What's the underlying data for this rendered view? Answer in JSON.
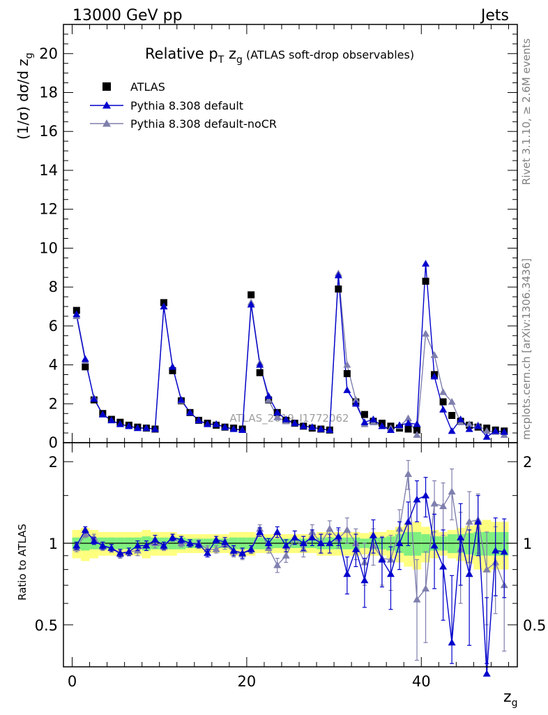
{
  "header": {
    "left": "13000 GeV pp",
    "right": "Jets"
  },
  "title": {
    "main": "Relative p",
    "sub1": "T",
    "mid": " z",
    "sub2": "g",
    "small": " (ATLAS soft-drop observables)"
  },
  "side_texts": {
    "rivet": "Rivet 3.1.10, ≥ 2.6M events",
    "mcplots": "mcplots.cern.ch [arXiv:1306.3436]",
    "watermark": "ATLAS_2019_I1772062"
  },
  "ylabel_top": "(1/σ) dσ/d z",
  "ylabel_top_sub": "g",
  "ylabel_bottom": "Ratio to ATLAS",
  "xlabel": "z",
  "xlabel_sub": "g",
  "colors": {
    "data": "#000000",
    "pythia_default": "#0000cc",
    "pythia_nocr": "#7f7fae",
    "band_inner": "#7fef7f",
    "band_outer": "#ffff7f"
  },
  "chart_data": [
    {
      "type": "scatter",
      "panel": "main",
      "xlim": [
        -1,
        51
      ],
      "ylim": [
        0,
        21.5
      ],
      "xticks": [
        0,
        20,
        40
      ],
      "yticks": [
        0,
        2,
        4,
        6,
        8,
        10,
        12,
        14,
        16,
        18,
        20
      ],
      "ytick_labels": [
        "0",
        "2",
        "4",
        "6",
        "8",
        "10",
        "12",
        "14",
        "16",
        "18",
        "20"
      ],
      "legend_position": "top-left",
      "x": [
        0.5,
        1.5,
        2.5,
        3.5,
        4.5,
        5.5,
        6.5,
        7.5,
        8.5,
        9.5,
        10.5,
        11.5,
        12.5,
        13.5,
        14.5,
        15.5,
        16.5,
        17.5,
        18.5,
        19.5,
        20.5,
        21.5,
        22.5,
        23.5,
        24.5,
        25.5,
        26.5,
        27.5,
        28.5,
        29.5,
        30.5,
        31.5,
        32.5,
        33.5,
        34.5,
        35.5,
        36.5,
        37.5,
        38.5,
        39.5,
        40.5,
        41.5,
        42.5,
        43.5,
        44.5,
        45.5,
        46.5,
        47.5,
        48.5,
        49.5
      ],
      "series": [
        {
          "name": "ATLAS",
          "marker": "square",
          "values": [
            6.8,
            3.9,
            2.2,
            1.5,
            1.2,
            1.05,
            0.9,
            0.8,
            0.75,
            0.7,
            7.2,
            3.7,
            2.15,
            1.55,
            1.15,
            1.0,
            0.9,
            0.8,
            0.75,
            0.7,
            7.6,
            3.6,
            2.2,
            1.55,
            1.15,
            1.0,
            0.85,
            0.75,
            0.7,
            0.65,
            7.9,
            3.55,
            2.1,
            1.45,
            1.1,
            1.0,
            0.85,
            0.75,
            0.7,
            0.65,
            8.3,
            3.5,
            2.1,
            1.4,
            1.1,
            0.9,
            0.8,
            0.75,
            0.65,
            0.6
          ]
        },
        {
          "name": "Pythia 8.308 default",
          "marker": "triangle",
          "values": [
            6.6,
            4.3,
            2.25,
            1.45,
            1.15,
            0.95,
            0.85,
            0.75,
            0.75,
            0.7,
            7.0,
            3.9,
            2.2,
            1.55,
            1.15,
            0.95,
            0.95,
            0.8,
            0.7,
            0.65,
            7.1,
            4.0,
            2.4,
            1.55,
            1.2,
            1.0,
            0.85,
            0.8,
            0.7,
            0.65,
            8.6,
            2.7,
            2.0,
            1.05,
            1.2,
            0.85,
            0.65,
            0.9,
            1.0,
            0.95,
            9.2,
            3.4,
            1.7,
            0.6,
            1.2,
            0.7,
            0.85,
            0.3,
            0.6,
            0.55
          ]
        },
        {
          "name": "Pythia 8.308 default-noCR",
          "marker": "triangle",
          "values": [
            6.5,
            4.2,
            2.3,
            1.45,
            1.15,
            0.95,
            0.85,
            0.75,
            0.75,
            0.7,
            7.0,
            3.9,
            2.15,
            1.55,
            1.15,
            0.95,
            0.95,
            0.8,
            0.7,
            0.65,
            7.2,
            4.1,
            2.2,
            1.3,
            1.1,
            1.0,
            0.85,
            0.8,
            0.7,
            0.65,
            8.7,
            4.0,
            2.2,
            0.95,
            1.05,
            0.85,
            0.75,
            0.85,
            1.25,
            0.4,
            5.6,
            4.5,
            2.6,
            2.1,
            1.05,
            0.95,
            0.9,
            0.6,
            0.55,
            0.4
          ]
        }
      ]
    },
    {
      "type": "scatter",
      "panel": "ratio",
      "xlim": [
        -1,
        51
      ],
      "ylim": [
        0.35,
        2.35
      ],
      "xticks": [
        0,
        20,
        40
      ],
      "xtick_labels": [
        "0",
        "20",
        "40"
      ],
      "yticks": [
        0.5,
        1,
        2
      ],
      "ytick_labels": [
        "0.5",
        "1",
        "2"
      ],
      "reference_line": 1,
      "x": [
        0.5,
        1.5,
        2.5,
        3.5,
        4.5,
        5.5,
        6.5,
        7.5,
        8.5,
        9.5,
        10.5,
        11.5,
        12.5,
        13.5,
        14.5,
        15.5,
        16.5,
        17.5,
        18.5,
        19.5,
        20.5,
        21.5,
        22.5,
        23.5,
        24.5,
        25.5,
        26.5,
        27.5,
        28.5,
        29.5,
        30.5,
        31.5,
        32.5,
        33.5,
        34.5,
        35.5,
        36.5,
        37.5,
        38.5,
        39.5,
        40.5,
        41.5,
        42.5,
        43.5,
        44.5,
        45.5,
        46.5,
        47.5,
        48.5,
        49.5
      ],
      "band_inner_halfwidth": [
        0.05,
        0.06,
        0.05,
        0.05,
        0.05,
        0.05,
        0.05,
        0.05,
        0.06,
        0.05,
        0.05,
        0.05,
        0.05,
        0.04,
        0.04,
        0.04,
        0.04,
        0.04,
        0.05,
        0.05,
        0.05,
        0.05,
        0.05,
        0.04,
        0.04,
        0.04,
        0.04,
        0.04,
        0.05,
        0.05,
        0.05,
        0.05,
        0.05,
        0.04,
        0.05,
        0.05,
        0.06,
        0.08,
        0.1,
        0.1,
        0.08,
        0.06,
        0.06,
        0.08,
        0.08,
        0.09,
        0.1,
        0.1,
        0.1,
        0.1
      ],
      "band_outer_halfwidth": [
        0.12,
        0.14,
        0.12,
        0.1,
        0.1,
        0.1,
        0.1,
        0.1,
        0.12,
        0.1,
        0.1,
        0.1,
        0.08,
        0.08,
        0.08,
        0.08,
        0.08,
        0.08,
        0.1,
        0.1,
        0.1,
        0.08,
        0.08,
        0.08,
        0.08,
        0.08,
        0.08,
        0.08,
        0.1,
        0.1,
        0.1,
        0.1,
        0.1,
        0.09,
        0.1,
        0.1,
        0.12,
        0.15,
        0.18,
        0.2,
        0.15,
        0.12,
        0.1,
        0.12,
        0.14,
        0.16,
        0.2,
        0.22,
        0.2,
        0.2
      ],
      "series": [
        {
          "name": "Pythia 8.308 default",
          "marker": "triangle",
          "values": [
            0.98,
            1.12,
            1.02,
            0.98,
            0.96,
            0.92,
            0.93,
            0.98,
            0.98,
            1.03,
            0.98,
            1.05,
            1.03,
            1.0,
            0.99,
            0.92,
            1.03,
            1.01,
            0.94,
            0.92,
            0.95,
            1.1,
            1.0,
            1.1,
            0.98,
            1.05,
            1.0,
            1.05,
            1.0,
            1.0,
            1.06,
            0.77,
            0.95,
            0.73,
            1.07,
            0.87,
            0.77,
            1.0,
            1.2,
            1.45,
            1.5,
            0.98,
            0.82,
            0.43,
            1.05,
            0.77,
            1.2,
            0.33,
            0.94,
            0.93
          ],
          "err": [
            0.03,
            0.03,
            0.03,
            0.03,
            0.03,
            0.03,
            0.03,
            0.04,
            0.04,
            0.04,
            0.03,
            0.03,
            0.03,
            0.03,
            0.03,
            0.03,
            0.03,
            0.04,
            0.04,
            0.04,
            0.03,
            0.04,
            0.04,
            0.05,
            0.05,
            0.06,
            0.06,
            0.07,
            0.08,
            0.08,
            0.08,
            0.12,
            0.13,
            0.15,
            0.15,
            0.18,
            0.2,
            0.2,
            0.22,
            0.25,
            0.25,
            0.3,
            0.3,
            0.33,
            0.35,
            0.35,
            0.3,
            0.3,
            0.3,
            0.3
          ]
        },
        {
          "name": "Pythia 8.308 default-noCR",
          "marker": "triangle",
          "values": [
            0.96,
            1.08,
            1.05,
            0.97,
            0.96,
            0.91,
            0.93,
            0.94,
            0.98,
            1.0,
            0.97,
            1.05,
            1.0,
            1.0,
            1.0,
            0.95,
            0.95,
            0.99,
            0.93,
            0.91,
            0.95,
            1.13,
            0.96,
            0.83,
            0.9,
            1.05,
            0.95,
            1.1,
            1.0,
            1.13,
            1.04,
            1.12,
            1.0,
            0.85,
            0.98,
            0.88,
            0.87,
            1.13,
            1.8,
            0.62,
            0.68,
            1.4,
            1.37,
            1.55,
            0.95,
            1.2,
            1.22,
            0.8,
            0.85,
            0.7
          ],
          "err": [
            0.03,
            0.03,
            0.03,
            0.03,
            0.03,
            0.03,
            0.03,
            0.04,
            0.04,
            0.04,
            0.03,
            0.03,
            0.03,
            0.03,
            0.03,
            0.03,
            0.03,
            0.04,
            0.04,
            0.04,
            0.03,
            0.04,
            0.04,
            0.05,
            0.05,
            0.06,
            0.06,
            0.07,
            0.08,
            0.08,
            0.08,
            0.12,
            0.13,
            0.15,
            0.15,
            0.18,
            0.2,
            0.2,
            0.22,
            0.25,
            0.25,
            0.3,
            0.3,
            0.33,
            0.35,
            0.35,
            0.3,
            0.3,
            0.3,
            0.3
          ]
        }
      ]
    }
  ]
}
